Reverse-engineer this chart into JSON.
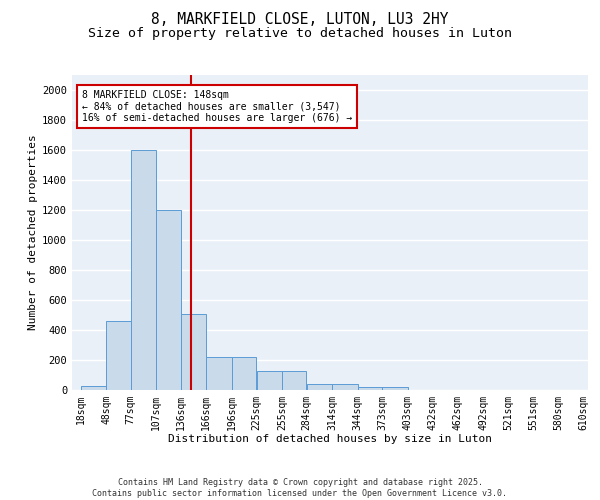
{
  "title": "8, MARKFIELD CLOSE, LUTON, LU3 2HY",
  "subtitle": "Size of property relative to detached houses in Luton",
  "xlabel": "Distribution of detached houses by size in Luton",
  "ylabel": "Number of detached properties",
  "bin_edges": [
    18,
    48,
    77,
    107,
    136,
    166,
    196,
    225,
    255,
    284,
    314,
    344,
    373,
    403,
    432,
    462,
    492,
    521,
    551,
    580,
    610
  ],
  "bar_heights": [
    30,
    460,
    1600,
    1200,
    510,
    220,
    220,
    130,
    130,
    40,
    40,
    20,
    20,
    0,
    0,
    0,
    0,
    0,
    0,
    0
  ],
  "bar_color": "#c9daea",
  "bar_edge_color": "#5b9bd5",
  "vline_x": 148,
  "vline_color": "#cc0000",
  "annotation_box_text": "8 MARKFIELD CLOSE: 148sqm\n← 84% of detached houses are smaller (3,547)\n16% of semi-detached houses are larger (676) →",
  "annotation_box_color": "#cc0000",
  "annotation_box_facecolor": "white",
  "ylim": [
    0,
    2100
  ],
  "yticks": [
    0,
    200,
    400,
    600,
    800,
    1000,
    1200,
    1400,
    1600,
    1800,
    2000
  ],
  "background_color": "#eaf0f8",
  "grid_color": "white",
  "footnote": "Contains HM Land Registry data © Crown copyright and database right 2025.\nContains public sector information licensed under the Open Government Licence v3.0.",
  "title_fontsize": 10.5,
  "subtitle_fontsize": 9.5,
  "label_fontsize": 8,
  "tick_fontsize": 7.5,
  "annot_fontsize": 7,
  "footnote_fontsize": 6
}
